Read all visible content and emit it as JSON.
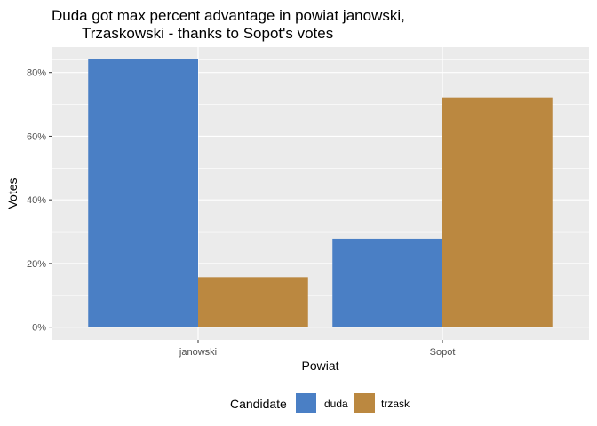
{
  "chart_data": {
    "type": "bar",
    "title_lines": [
      "Duda got max percent advantage in powiat janowski,",
      "Trzaskowski - thanks to Sopot's votes"
    ],
    "xlabel": "Powiat",
    "ylabel": "Votes",
    "categories": [
      "janowski",
      "Sopot"
    ],
    "series": [
      {
        "name": "duda",
        "values": [
          0.843,
          0.278
        ]
      },
      {
        "name": "trzask",
        "values": [
          0.157,
          0.722
        ]
      }
    ],
    "ylim": [
      -0.04,
      0.88
    ],
    "y_ticks": [
      0,
      0.2,
      0.4,
      0.6,
      0.8
    ],
    "y_tick_labels": [
      "0%",
      "20%",
      "40%",
      "60%",
      "80%"
    ],
    "grid": true,
    "legend": {
      "title": "Candidate",
      "placement": "bottom"
    },
    "colors": {
      "duda": "#4a7fc5",
      "trzask": "#bb8840",
      "panel": "#ebebeb",
      "grid": "#ffffff"
    }
  }
}
